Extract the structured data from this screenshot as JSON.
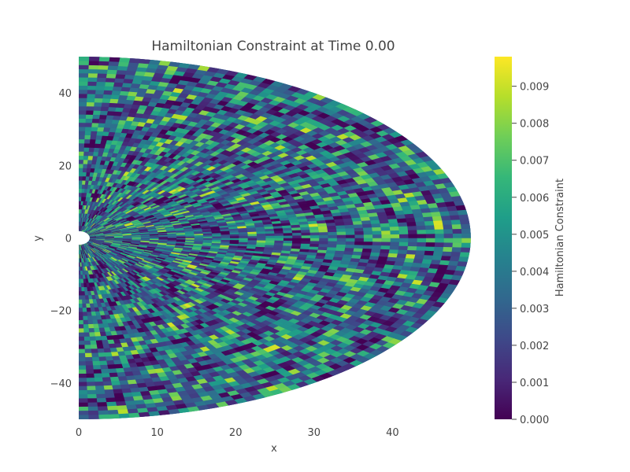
{
  "chart_data": {
    "type": "heatmap",
    "title": "Hamiltonian Constraint at Time 0.00",
    "xlabel": "x",
    "ylabel": "y",
    "xlim": [
      0,
      50
    ],
    "ylim": [
      -50,
      50
    ],
    "xticks": [
      0,
      10,
      20,
      30,
      40
    ],
    "xtick_labels": [
      "0",
      "10",
      "20",
      "30",
      "40"
    ],
    "yticks": [
      40,
      20,
      0,
      -20,
      -40
    ],
    "ytick_labels": [
      "40",
      "20",
      "0",
      "−20",
      "−40"
    ],
    "domain": {
      "shape": "half-disk",
      "outer_radius": 50,
      "inner_radius": 1,
      "x_range": [
        0,
        50
      ],
      "y_range": [
        -50,
        50
      ]
    },
    "colorscale": "Viridis",
    "colorscale_stops": [
      "#440154",
      "#482878",
      "#3e4989",
      "#31688e",
      "#26828e",
      "#1f9e89",
      "#35b779",
      "#6ece58",
      "#b5de2b",
      "#fde725"
    ],
    "colorbar": {
      "title": "Hamiltonian Constraint",
      "range": [
        0,
        0.0098
      ],
      "ticks": [
        0,
        0.001,
        0.002,
        0.003,
        0.004,
        0.005,
        0.006,
        0.007,
        0.008,
        0.009
      ],
      "tick_labels": [
        "0.000",
        "0.001",
        "0.002",
        "0.003",
        "0.004",
        "0.005",
        "0.006",
        "0.007",
        "0.008",
        "0.009"
      ]
    },
    "grid": false,
    "legend": "none"
  }
}
